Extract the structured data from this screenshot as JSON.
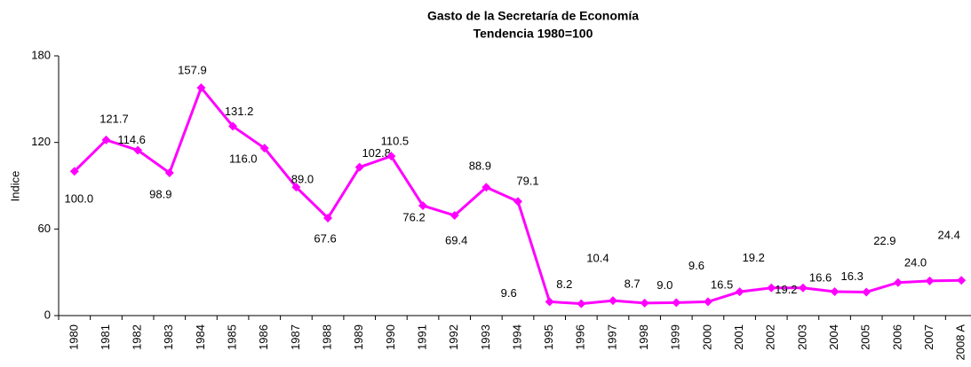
{
  "chart_data": {
    "type": "line",
    "title": "Gasto de la Secretaría de Economía",
    "subtitle": "Tendencia 1980=100",
    "y_label": "Indice",
    "categories": [
      "1980",
      "1981",
      "1982",
      "1983",
      "1984",
      "1985",
      "1986",
      "1987",
      "1988",
      "1989",
      "1990",
      "1991",
      "1992",
      "1993",
      "1994",
      "1995",
      "1996",
      "1997",
      "1998",
      "1999",
      "2000",
      "2001",
      "2002",
      "2003",
      "2004",
      "2005",
      "2006",
      "2007",
      "2008 A"
    ],
    "series": [
      {
        "name": "Indice",
        "color": "#ff00ff",
        "values": [
          100,
          121.7,
          114.6,
          98.9,
          157.9,
          131.2,
          116,
          89,
          67.6,
          102.8,
          110.5,
          76.2,
          69.4,
          88.9,
          79.1,
          9.6,
          8.2,
          10.4,
          8.7,
          9,
          9.6,
          16.5,
          19.2,
          19.2,
          16.6,
          16.3,
          22.9,
          24,
          24.4
        ],
        "value_labels": [
          "100.0",
          "121.7",
          "114.6",
          "98.9",
          "157.9",
          "131.2",
          "116.0",
          "89.0",
          "67.6",
          "102.8",
          "110.5",
          "76.2",
          "69.4",
          "88.9",
          "79.1",
          "9.6",
          "8.2",
          "10.4",
          "8.7",
          "9.0",
          "9.6",
          "16.5",
          "19.2",
          "19.2",
          "16.6",
          "16.3",
          "22.9",
          "24.0",
          "24.4"
        ]
      }
    ],
    "ylim": [
      0,
      180
    ],
    "yticks": [
      0,
      60,
      120,
      180
    ]
  }
}
